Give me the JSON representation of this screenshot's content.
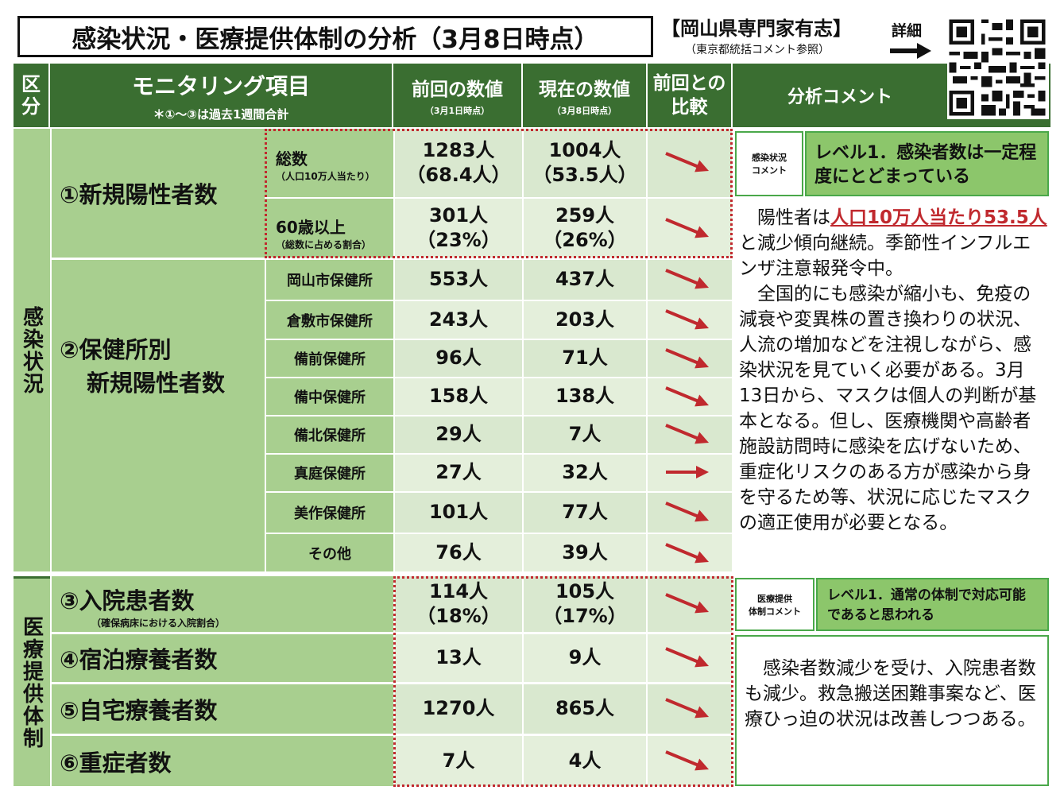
{
  "header": {
    "title": "感染状況・医療提供体制の分析（3月8日時点）",
    "source": "【岡山県専門家有志】",
    "source_note": "（東京都統括コメント参照）",
    "detail": "詳細"
  },
  "columns": {
    "category": "区分",
    "monitoring": "モニタリング項目",
    "monitoring_note": "＊①～③は過去1週間合計",
    "previous": "前回の数値",
    "previous_note": "（3月1日時点）",
    "current": "現在の数値",
    "current_note": "（3月8日時点）",
    "compare": "前回との比較",
    "comment": "分析コメント"
  },
  "sections": {
    "infection": "感染状況",
    "medical": "医療提供体制"
  },
  "items": {
    "new_positive": "①新規陽性者数",
    "total_label": "総数",
    "total_note": "（人口10万人当たり）",
    "total_prev": "1283人",
    "total_prev2": "（68.4人）",
    "total_cur": "1004人",
    "total_cur2": "（53.5人）",
    "over60_label": "60歳以上",
    "over60_note": "（総数に占める割合）",
    "over60_prev": "301人",
    "over60_prev2": "（23%）",
    "over60_cur": "259人",
    "over60_cur2": "（26%）",
    "by_center_1": "②保健所別",
    "by_center_2": "新規陽性者数",
    "centers": [
      {
        "name": "岡山市保健所",
        "prev": "553人",
        "cur": "437人"
      },
      {
        "name": "倉敷市保健所",
        "prev": "243人",
        "cur": "203人"
      },
      {
        "name": "備前保健所",
        "prev": "96人",
        "cur": "71人"
      },
      {
        "name": "備中保健所",
        "prev": "158人",
        "cur": "138人"
      },
      {
        "name": "備北保健所",
        "prev": "29人",
        "cur": "7人"
      },
      {
        "name": "真庭保健所",
        "prev": "27人",
        "cur": "32人"
      },
      {
        "name": "美作保健所",
        "prev": "101人",
        "cur": "77人"
      },
      {
        "name": "その他",
        "prev": "76人",
        "cur": "39人"
      }
    ],
    "hospital": "③入院患者数",
    "hospital_note": "（確保病床における入院割合）",
    "hospital_prev": "114人",
    "hospital_prev2": "（18%）",
    "hospital_cur": "105人",
    "hospital_cur2": "（17%）",
    "hotel": "④宿泊療養者数",
    "hotel_prev": "13人",
    "hotel_cur": "9人",
    "home": "⑤自宅療養者数",
    "home_prev": "1270人",
    "home_cur": "865人",
    "severe": "⑥重症者数",
    "severe_prev": "7人",
    "severe_cur": "4人"
  },
  "comments": {
    "infection_label_1": "感染状況",
    "infection_label_2": "コメント",
    "infection_level": "レベル1．感染者数は一定程度にとどまっている",
    "infection_text_a": "陽性者は",
    "infection_text_red": "人口10万人当たり53.5人",
    "infection_text_b": "と減少傾向継続。季節性インフルエンザ注意報発令中。",
    "infection_text_c": "全国的にも感染が縮小も、免疫の減衰や変異株の置き換わりの状況、人流の増加などを注視しながら、感染状況を見ていく必要がある。3月13日から、マスクは個人の判断が基本となる。但し、医療機関や高齢者施設訪問時に感染を広げないため、重症化リスクのある方が感染から身を守るため等、状況に応じたマスクの適正使用が必要となる。",
    "medical_label_1": "医療提供",
    "medical_label_2": "体制コメント",
    "medical_level": "レベル1．通常の体制で対応可能であると思われる",
    "medical_text": "感染者数減少を受け、入院患者数も減少。救急搬送困難事案など、医療ひっ迫の状況は改善しつつある。"
  },
  "colors": {
    "header_green": "#3a6e31",
    "accent_red": "#c0292e",
    "row_green": "#a8cf8f"
  },
  "trend_icons": [
    "down-right-arrow-icon",
    "down-right-arrow-icon",
    "down-right-arrow-icon",
    "down-right-arrow-icon",
    "down-right-arrow-icon",
    "down-right-arrow-icon",
    "down-right-arrow-icon",
    "right-arrow-icon",
    "down-right-arrow-icon",
    "down-right-arrow-icon",
    "down-right-arrow-icon",
    "down-right-arrow-icon",
    "down-right-arrow-icon",
    "down-right-arrow-icon"
  ]
}
